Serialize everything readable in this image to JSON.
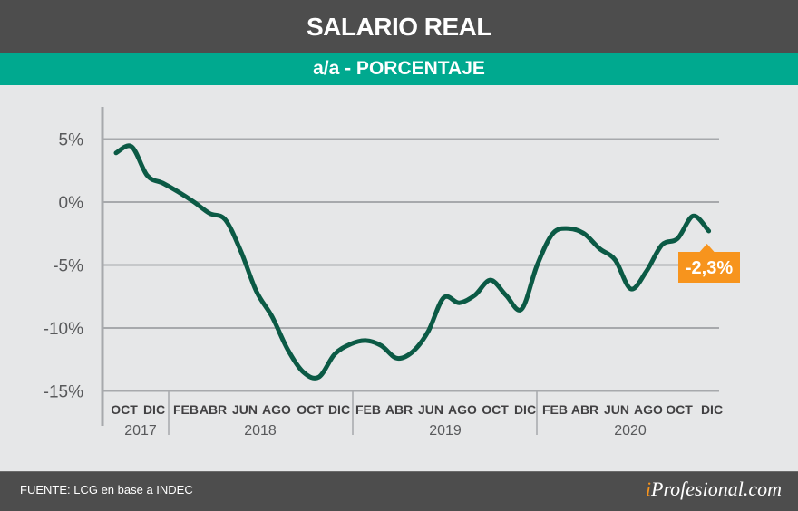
{
  "header": {
    "title": "SALARIO REAL",
    "subtitle": "a/a - PORCENTAJE"
  },
  "footer": {
    "source": "FUENTE: LCG en base a INDEC",
    "logo_i": "i",
    "logo_rest": "Profesional.com"
  },
  "colors": {
    "header": "#4d4d4d",
    "band": "#00a98f",
    "background": "#e6e7e8",
    "line": "#0b5a45",
    "callout": "#f7941d",
    "grid": "#a7a9ac"
  },
  "chart_data": {
    "type": "line",
    "title": "SALARIO REAL",
    "subtitle": "a/a - PORCENTAJE",
    "ylim": [
      -15,
      5
    ],
    "yticks": [
      5,
      0,
      -5,
      -10,
      -15
    ],
    "ytick_labels": [
      "5%",
      "0%",
      "-5%",
      "-10%",
      "-15%"
    ],
    "grid": true,
    "x_month_labels": [
      "OCT",
      "DIC",
      "FEB",
      "ABR",
      "JUN",
      "AGO",
      "OCT",
      "DIC",
      "FEB",
      "ABR",
      "JUN",
      "AGO",
      "OCT",
      "DIC",
      "FEB",
      "ABR",
      "JUN",
      "AGO",
      "OCT",
      "DIC"
    ],
    "x_year_labels": [
      "2017",
      "2018",
      "2019",
      "2020"
    ],
    "x": [
      "2017-10",
      "2017-11",
      "2017-12",
      "2018-01",
      "2018-02",
      "2018-03",
      "2018-04",
      "2018-05",
      "2018-06",
      "2018-07",
      "2018-08",
      "2018-09",
      "2018-10",
      "2018-11",
      "2018-12",
      "2019-01",
      "2019-02",
      "2019-03",
      "2019-04",
      "2019-05",
      "2019-06",
      "2019-07",
      "2019-08",
      "2019-09",
      "2019-10",
      "2019-11",
      "2019-12",
      "2020-01",
      "2020-02",
      "2020-03",
      "2020-04",
      "2020-05",
      "2020-06",
      "2020-07",
      "2020-08",
      "2020-09",
      "2020-10",
      "2020-11",
      "2020-12"
    ],
    "values": [
      3.9,
      4.4,
      2.1,
      1.5,
      0.8,
      0.0,
      -0.9,
      -1.4,
      -3.9,
      -7.1,
      -9.1,
      -11.7,
      -13.5,
      -13.9,
      -12.1,
      -11.3,
      -11.0,
      -11.4,
      -12.4,
      -11.9,
      -10.3,
      -7.6,
      -8.0,
      -7.4,
      -6.2,
      -7.4,
      -8.5,
      -5.0,
      -2.5,
      -2.1,
      -2.5,
      -3.7,
      -4.6,
      -6.9,
      -5.5,
      -3.4,
      -2.9,
      -1.1,
      -2.3
    ],
    "annotation": "-2,3%"
  }
}
